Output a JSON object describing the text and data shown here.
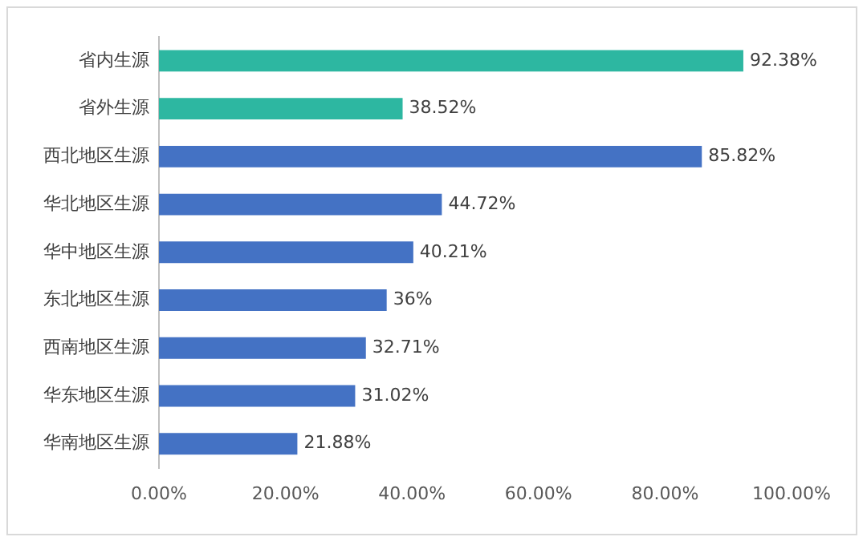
{
  "chart_data": {
    "type": "bar",
    "orientation": "horizontal",
    "categories": [
      "省内生源",
      "省外生源",
      "西北地区生源",
      "华北地区生源",
      "华中地区生源",
      "东北地区生源",
      "西南地区生源",
      "华东地区生源",
      "华南地区生源"
    ],
    "values": [
      92.38,
      38.52,
      85.82,
      44.72,
      40.21,
      36,
      32.71,
      31.02,
      21.88
    ],
    "colors": [
      "#2db7a1",
      "#2db7a1",
      "#4472c4",
      "#4472c4",
      "#4472c4",
      "#4472c4",
      "#4472c4",
      "#4472c4",
      "#4472c4"
    ],
    "value_labels": [
      "92.38%",
      "38.52%",
      "85.82%",
      "44.72%",
      "40.21%",
      "36%",
      "32.71%",
      "31.02%",
      "21.88%"
    ],
    "xlim": [
      0,
      100
    ],
    "xticks": [
      {
        "value": 0,
        "label": "0.00%"
      },
      {
        "value": 20,
        "label": "20.00%"
      },
      {
        "value": 40,
        "label": "40.00%"
      },
      {
        "value": 60,
        "label": "60.00%"
      },
      {
        "value": 80,
        "label": "80.00%"
      },
      {
        "value": 100,
        "label": "100.00%"
      }
    ],
    "grid": false,
    "legend": false
  }
}
